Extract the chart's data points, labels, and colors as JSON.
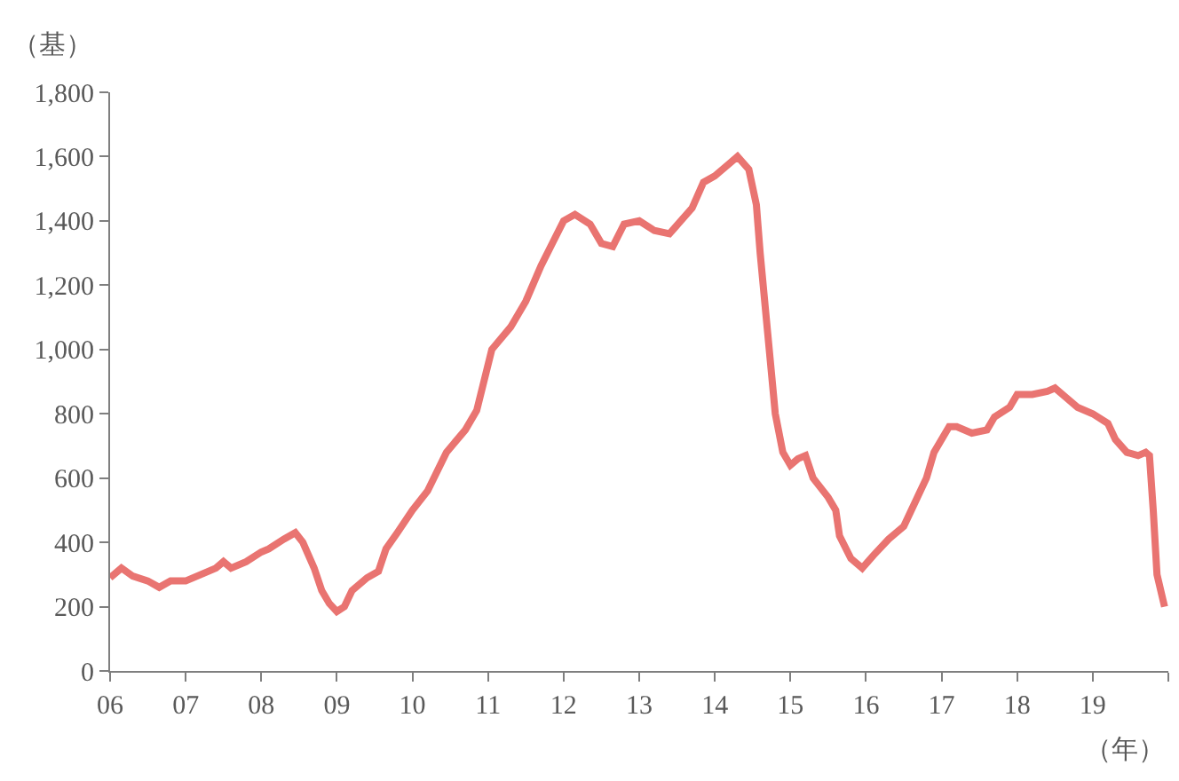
{
  "chart_data": {
    "type": "line",
    "ylabel": "（基）",
    "xlabel": "（年）",
    "x": [
      6.0,
      6.15,
      6.3,
      6.5,
      6.65,
      6.8,
      7.0,
      7.2,
      7.4,
      7.5,
      7.6,
      7.8,
      8.0,
      8.1,
      8.3,
      8.45,
      8.55,
      8.7,
      8.8,
      8.9,
      9.0,
      9.1,
      9.2,
      9.4,
      9.55,
      9.65,
      9.8,
      10.0,
      10.2,
      10.45,
      10.7,
      10.85,
      11.05,
      11.3,
      11.5,
      11.7,
      11.85,
      12.0,
      12.15,
      12.35,
      12.5,
      12.65,
      12.8,
      13.0,
      13.2,
      13.4,
      13.55,
      13.7,
      13.85,
      14.0,
      14.2,
      14.3,
      14.45,
      14.55,
      14.6,
      14.7,
      14.8,
      14.9,
      15.0,
      15.1,
      15.2,
      15.3,
      15.5,
      15.6,
      15.65,
      15.8,
      15.95,
      16.1,
      16.3,
      16.5,
      16.7,
      16.8,
      16.9,
      17.1,
      17.2,
      17.4,
      17.6,
      17.7,
      17.9,
      18.0,
      18.2,
      18.4,
      18.5,
      18.6,
      18.8,
      19.0,
      19.2,
      19.3,
      19.45,
      19.6,
      19.7,
      19.75,
      19.8,
      19.85,
      19.95
    ],
    "series": [
      {
        "color": "#e97471",
        "values": [
          290,
          320,
          295,
          280,
          260,
          280,
          280,
          300,
          320,
          340,
          320,
          340,
          370,
          380,
          410,
          430,
          400,
          320,
          250,
          210,
          185,
          200,
          250,
          290,
          310,
          380,
          430,
          500,
          560,
          680,
          750,
          810,
          1000,
          1070,
          1150,
          1260,
          1330,
          1400,
          1420,
          1390,
          1330,
          1320,
          1390,
          1400,
          1370,
          1360,
          1400,
          1440,
          1520,
          1540,
          1580,
          1600,
          1560,
          1450,
          1300,
          1050,
          800,
          680,
          640,
          660,
          670,
          600,
          540,
          500,
          420,
          350,
          320,
          360,
          410,
          450,
          550,
          600,
          680,
          760,
          760,
          740,
          750,
          790,
          820,
          860,
          860,
          870,
          880,
          860,
          820,
          800,
          770,
          720,
          680,
          670,
          680,
          670,
          500,
          300,
          200
        ]
      }
    ],
    "xlim": [
      6,
      20
    ],
    "xticks": [
      {
        "value": 6,
        "label": "06"
      },
      {
        "value": 7,
        "label": "07"
      },
      {
        "value": 8,
        "label": "08"
      },
      {
        "value": 9,
        "label": "09"
      },
      10,
      11,
      12,
      13,
      14,
      15,
      16,
      17,
      18,
      19,
      {
        "value": 20,
        "label": null
      }
    ],
    "ylim": [
      0,
      1800
    ],
    "yticks": [
      {
        "value": 0,
        "label": "0"
      },
      {
        "value": 200,
        "label": "200"
      },
      {
        "value": 400,
        "label": "400"
      },
      {
        "value": 600,
        "label": "600"
      },
      {
        "value": 800,
        "label": "800"
      },
      {
        "value": 1000,
        "label": "1,000"
      },
      {
        "value": 1200,
        "label": "1,200"
      },
      {
        "value": 1400,
        "label": "1,400"
      },
      {
        "value": 1600,
        "label": "1,600"
      },
      {
        "value": 1800,
        "label": "1,800"
      }
    ],
    "marker": "none",
    "line_style": "solid"
  }
}
